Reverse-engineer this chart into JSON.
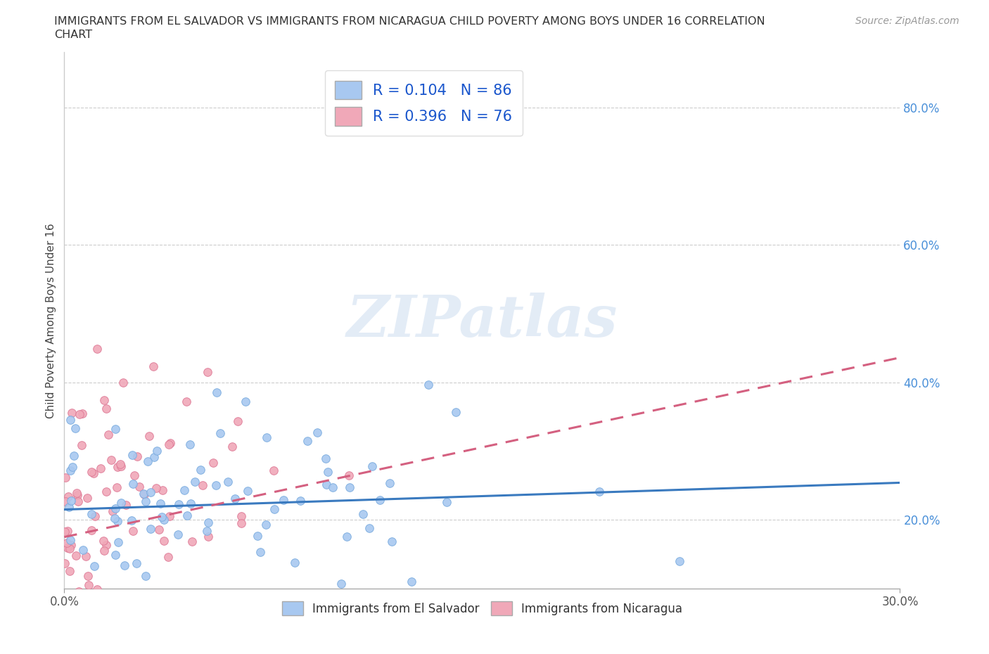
{
  "title_line1": "IMMIGRANTS FROM EL SALVADOR VS IMMIGRANTS FROM NICARAGUA CHILD POVERTY AMONG BOYS UNDER 16 CORRELATION",
  "title_line2": "CHART",
  "source": "Source: ZipAtlas.com",
  "ylabel": "Child Poverty Among Boys Under 16",
  "xlim": [
    0.0,
    0.3
  ],
  "ylim": [
    0.1,
    0.88
  ],
  "xtick_positions": [
    0.0,
    0.3
  ],
  "xticklabels": [
    "0.0%",
    "30.0%"
  ],
  "ytick_positions": [
    0.2,
    0.4,
    0.6,
    0.8
  ],
  "yticklabels": [
    "20.0%",
    "40.0%",
    "60.0%",
    "80.0%"
  ],
  "legend_label1": "R = 0.104   N = 86",
  "legend_label2": "R = 0.396   N = 76",
  "series1_color": "#a8c8f0",
  "series1_edge": "#7aabde",
  "series2_color": "#f0a8b8",
  "series2_edge": "#de7a96",
  "trend1_color": "#3a7abf",
  "trend2_color": "#d46080",
  "N1": 86,
  "N2": 76,
  "watermark": "ZIPatlas",
  "background_color": "#ffffff",
  "grid_color": "#cccccc",
  "series1_name": "Immigrants from El Salvador",
  "series2_name": "Immigrants from Nicaragua",
  "trend1_style": "-",
  "trend2_style": "--",
  "title_fontsize": 11.5,
  "source_fontsize": 10,
  "tick_label_color_y": "#4a90d9",
  "tick_label_color_x": "#555555"
}
